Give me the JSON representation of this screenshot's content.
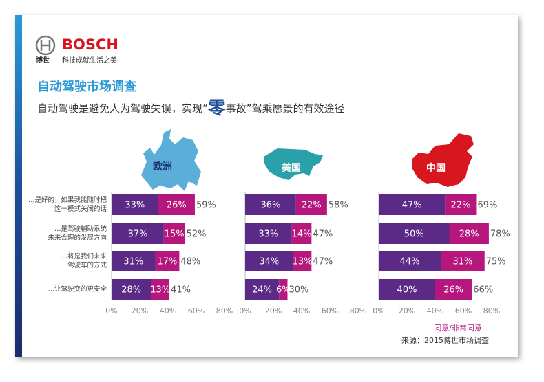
{
  "header": {
    "brand": "BOSCH",
    "logo_text": "博世",
    "slogan": "科技成就生活之美"
  },
  "title": "自动驾驶市场调查",
  "subtitle_parts": [
    "自动驾驶是避免人为驾驶失误，实现“",
    "零",
    "事故”驾乘愿景的有效途径"
  ],
  "legend_text": "同意/非常同意",
  "source": "来源：2015博世市场调查",
  "chart_data": [
    {
      "type": "bar",
      "title": "欧洲",
      "categories": [
        [
          "…是好的，如果我能随时把",
          "这一模式关闭的话"
        ],
        [
          "…是驾驶辅助系统",
          "未来合理的发展方向"
        ],
        [
          "…将是我们未来",
          "驾驶车的方式"
        ],
        [
          "…让驾驶变的更安全"
        ]
      ],
      "series": [
        {
          "color": "#5b2a86",
          "values": [
            33,
            37,
            31,
            28
          ],
          "value_labels": [
            "33%",
            "37%",
            "31%",
            "28%"
          ]
        },
        {
          "color": "#b5177d",
          "values": [
            26,
            15,
            17,
            13
          ],
          "value_labels": [
            "26%",
            "15%",
            "17%",
            "13%"
          ]
        }
      ],
      "totals": [
        59,
        52,
        48,
        41
      ],
      "total_labels": [
        "59%",
        "52%",
        "48%",
        "41%"
      ],
      "xlim": [
        0,
        80
      ],
      "xticks": [
        {
          "value": 0,
          "label": "0%"
        },
        {
          "value": 20,
          "label": "20%"
        },
        {
          "value": 40,
          "label": "40%"
        },
        {
          "value": 60,
          "label": "60%"
        },
        {
          "value": 80,
          "label": "80%"
        }
      ]
    },
    {
      "type": "bar",
      "title": "美国",
      "series": [
        {
          "color": "#5b2a86",
          "values": [
            36,
            33,
            34,
            24
          ],
          "value_labels": [
            "36%",
            "33%",
            "34%",
            "24%"
          ]
        },
        {
          "color": "#b5177d",
          "values": [
            22,
            14,
            13,
            6
          ],
          "value_labels": [
            "22%",
            "14%",
            "13%",
            "6%"
          ]
        }
      ],
      "totals": [
        58,
        47,
        47,
        30
      ],
      "total_labels": [
        "58%",
        "47%",
        "47%",
        "30%"
      ],
      "xlim": [
        0,
        80
      ],
      "xticks": [
        {
          "value": 0,
          "label": "0%"
        },
        {
          "value": 20,
          "label": "20%"
        },
        {
          "value": 40,
          "label": "40%"
        },
        {
          "value": 60,
          "label": "60%"
        },
        {
          "value": 80,
          "label": "80%"
        }
      ]
    },
    {
      "type": "bar",
      "title": "中国",
      "series": [
        {
          "color": "#5b2a86",
          "values": [
            47,
            50,
            44,
            40
          ],
          "value_labels": [
            "47%",
            "50%",
            "44%",
            "40%"
          ]
        },
        {
          "color": "#b5177d",
          "values": [
            22,
            28,
            31,
            26
          ],
          "value_labels": [
            "22%",
            "28%",
            "31%",
            "26%"
          ]
        }
      ],
      "totals": [
        69,
        78,
        75,
        66
      ],
      "total_labels": [
        "69%",
        "78%",
        "75%",
        "66%"
      ],
      "xlim": [
        0,
        80
      ],
      "xticks": [
        {
          "value": 0,
          "label": "0%"
        },
        {
          "value": 20,
          "label": "20%"
        },
        {
          "value": 40,
          "label": "40%"
        },
        {
          "value": 60,
          "label": "60%"
        },
        {
          "value": 80,
          "label": "80%"
        }
      ]
    }
  ]
}
